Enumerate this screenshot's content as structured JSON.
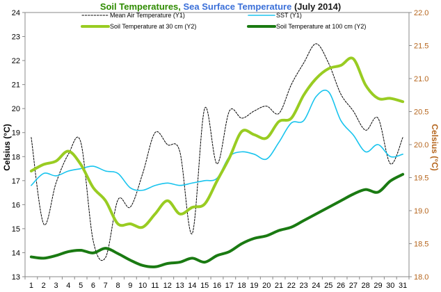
{
  "chart_data": {
    "type": "line",
    "title_parts": [
      {
        "text": "Soil Temperatures",
        "color": "#2e8b00"
      },
      {
        "text": ", ",
        "color": "#2e8b00"
      },
      {
        "text": "Sea Surface Temperature",
        "color": "#3a6fd8"
      },
      {
        "text": " (July 2014)",
        "color": "#1a1a1a"
      }
    ],
    "ylabel_left": "Celsius (°C)",
    "ylabel_right": "Celsius (°C)",
    "ylabel_right_color": "#b5651d",
    "x": [
      1,
      2,
      3,
      4,
      5,
      6,
      7,
      8,
      9,
      10,
      11,
      12,
      13,
      14,
      15,
      16,
      17,
      18,
      19,
      20,
      21,
      22,
      23,
      24,
      25,
      26,
      27,
      28,
      29,
      30,
      31
    ],
    "xlim": [
      0.5,
      31.5
    ],
    "ylim_left": [
      13,
      24
    ],
    "ylim_right": [
      18.0,
      22.0
    ],
    "y_ticks_left": [
      "13",
      "14",
      "15",
      "16",
      "17",
      "18",
      "19",
      "20",
      "21",
      "22",
      "23",
      "24"
    ],
    "y_ticks_right": [
      "18.0",
      "18.5",
      "19.0",
      "19.5",
      "20.0",
      "20.5",
      "21.0",
      "21.5",
      "22.0"
    ],
    "legend_position": "top",
    "series": [
      {
        "name": "Mean Air Temperature (Y1)",
        "axis": "left",
        "color": "#000000",
        "style": "dashed",
        "values": [
          18.8,
          15.2,
          16.9,
          18.1,
          18.6,
          14.5,
          13.8,
          16.2,
          15.9,
          17.3,
          19.0,
          18.5,
          18.2,
          14.8,
          20.0,
          17.7,
          19.9,
          19.6,
          19.9,
          20.1,
          19.8,
          21.0,
          21.9,
          22.7,
          21.9,
          20.6,
          19.9,
          19.1,
          19.6,
          17.7,
          18.8
        ]
      },
      {
        "name": "SST (Y1)",
        "axis": "left",
        "color": "#18c4ee",
        "style": "solid",
        "values": [
          16.8,
          17.3,
          17.2,
          17.4,
          17.5,
          17.6,
          17.4,
          17.3,
          16.7,
          16.6,
          16.8,
          16.9,
          16.8,
          16.9,
          17.0,
          17.1,
          18.0,
          18.2,
          18.1,
          17.9,
          18.6,
          19.4,
          19.5,
          20.5,
          20.7,
          19.5,
          18.9,
          18.2,
          18.5,
          18.0,
          18.1
        ]
      },
      {
        "name": "Soil Temperature at 30 cm (Y2)",
        "axis": "right",
        "color": "#99cc22",
        "style": "solid",
        "values": [
          19.6,
          19.7,
          19.75,
          19.9,
          19.7,
          19.35,
          19.15,
          18.8,
          18.8,
          18.75,
          18.95,
          19.15,
          18.95,
          19.05,
          19.1,
          19.45,
          19.8,
          20.2,
          20.15,
          20.1,
          20.35,
          20.4,
          20.75,
          21.0,
          21.15,
          21.2,
          21.3,
          20.9,
          20.7,
          20.7,
          20.65
        ]
      },
      {
        "name": "Soil Temperature at 100 cm (Y2)",
        "axis": "right",
        "color": "#1a7a12",
        "style": "solid",
        "values": [
          18.3,
          18.28,
          18.32,
          18.38,
          18.4,
          18.36,
          18.43,
          18.35,
          18.25,
          18.17,
          18.15,
          18.2,
          18.22,
          18.28,
          18.22,
          18.32,
          18.38,
          18.5,
          18.58,
          18.62,
          18.7,
          18.75,
          18.85,
          18.95,
          19.05,
          19.15,
          19.25,
          19.32,
          19.28,
          19.45,
          19.55
        ]
      }
    ]
  }
}
